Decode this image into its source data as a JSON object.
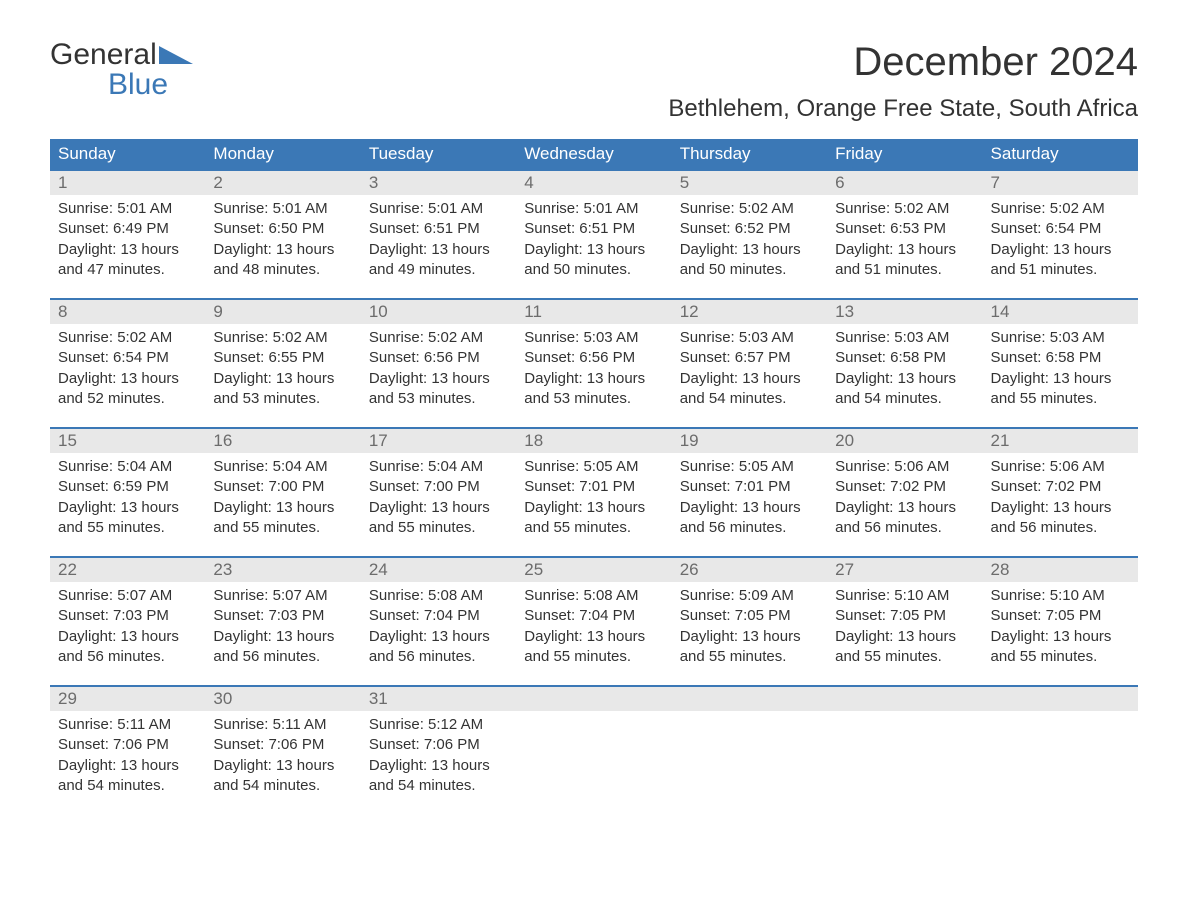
{
  "logo": {
    "line1": "General",
    "line2": "Blue"
  },
  "title": "December 2024",
  "location": "Bethlehem, Orange Free State, South Africa",
  "colors": {
    "accent": "#3b78b6",
    "header_bg": "#3b78b6",
    "header_text": "#ffffff",
    "daynum_bg": "#e8e8e8",
    "daynum_text": "#6c6c6c",
    "body_text": "#333333",
    "background": "#ffffff"
  },
  "daysOfWeek": [
    "Sunday",
    "Monday",
    "Tuesday",
    "Wednesday",
    "Thursday",
    "Friday",
    "Saturday"
  ],
  "labels": {
    "sunrise": "Sunrise:",
    "sunset": "Sunset:",
    "daylight": "Daylight:"
  },
  "weeks": [
    [
      {
        "n": "1",
        "sunrise": "5:01 AM",
        "sunset": "6:49 PM",
        "daylight": "13 hours and 47 minutes."
      },
      {
        "n": "2",
        "sunrise": "5:01 AM",
        "sunset": "6:50 PM",
        "daylight": "13 hours and 48 minutes."
      },
      {
        "n": "3",
        "sunrise": "5:01 AM",
        "sunset": "6:51 PM",
        "daylight": "13 hours and 49 minutes."
      },
      {
        "n": "4",
        "sunrise": "5:01 AM",
        "sunset": "6:51 PM",
        "daylight": "13 hours and 50 minutes."
      },
      {
        "n": "5",
        "sunrise": "5:02 AM",
        "sunset": "6:52 PM",
        "daylight": "13 hours and 50 minutes."
      },
      {
        "n": "6",
        "sunrise": "5:02 AM",
        "sunset": "6:53 PM",
        "daylight": "13 hours and 51 minutes."
      },
      {
        "n": "7",
        "sunrise": "5:02 AM",
        "sunset": "6:54 PM",
        "daylight": "13 hours and 51 minutes."
      }
    ],
    [
      {
        "n": "8",
        "sunrise": "5:02 AM",
        "sunset": "6:54 PM",
        "daylight": "13 hours and 52 minutes."
      },
      {
        "n": "9",
        "sunrise": "5:02 AM",
        "sunset": "6:55 PM",
        "daylight": "13 hours and 53 minutes."
      },
      {
        "n": "10",
        "sunrise": "5:02 AM",
        "sunset": "6:56 PM",
        "daylight": "13 hours and 53 minutes."
      },
      {
        "n": "11",
        "sunrise": "5:03 AM",
        "sunset": "6:56 PM",
        "daylight": "13 hours and 53 minutes."
      },
      {
        "n": "12",
        "sunrise": "5:03 AM",
        "sunset": "6:57 PM",
        "daylight": "13 hours and 54 minutes."
      },
      {
        "n": "13",
        "sunrise": "5:03 AM",
        "sunset": "6:58 PM",
        "daylight": "13 hours and 54 minutes."
      },
      {
        "n": "14",
        "sunrise": "5:03 AM",
        "sunset": "6:58 PM",
        "daylight": "13 hours and 55 minutes."
      }
    ],
    [
      {
        "n": "15",
        "sunrise": "5:04 AM",
        "sunset": "6:59 PM",
        "daylight": "13 hours and 55 minutes."
      },
      {
        "n": "16",
        "sunrise": "5:04 AM",
        "sunset": "7:00 PM",
        "daylight": "13 hours and 55 minutes."
      },
      {
        "n": "17",
        "sunrise": "5:04 AM",
        "sunset": "7:00 PM",
        "daylight": "13 hours and 55 minutes."
      },
      {
        "n": "18",
        "sunrise": "5:05 AM",
        "sunset": "7:01 PM",
        "daylight": "13 hours and 55 minutes."
      },
      {
        "n": "19",
        "sunrise": "5:05 AM",
        "sunset": "7:01 PM",
        "daylight": "13 hours and 56 minutes."
      },
      {
        "n": "20",
        "sunrise": "5:06 AM",
        "sunset": "7:02 PM",
        "daylight": "13 hours and 56 minutes."
      },
      {
        "n": "21",
        "sunrise": "5:06 AM",
        "sunset": "7:02 PM",
        "daylight": "13 hours and 56 minutes."
      }
    ],
    [
      {
        "n": "22",
        "sunrise": "5:07 AM",
        "sunset": "7:03 PM",
        "daylight": "13 hours and 56 minutes."
      },
      {
        "n": "23",
        "sunrise": "5:07 AM",
        "sunset": "7:03 PM",
        "daylight": "13 hours and 56 minutes."
      },
      {
        "n": "24",
        "sunrise": "5:08 AM",
        "sunset": "7:04 PM",
        "daylight": "13 hours and 56 minutes."
      },
      {
        "n": "25",
        "sunrise": "5:08 AM",
        "sunset": "7:04 PM",
        "daylight": "13 hours and 55 minutes."
      },
      {
        "n": "26",
        "sunrise": "5:09 AM",
        "sunset": "7:05 PM",
        "daylight": "13 hours and 55 minutes."
      },
      {
        "n": "27",
        "sunrise": "5:10 AM",
        "sunset": "7:05 PM",
        "daylight": "13 hours and 55 minutes."
      },
      {
        "n": "28",
        "sunrise": "5:10 AM",
        "sunset": "7:05 PM",
        "daylight": "13 hours and 55 minutes."
      }
    ],
    [
      {
        "n": "29",
        "sunrise": "5:11 AM",
        "sunset": "7:06 PM",
        "daylight": "13 hours and 54 minutes."
      },
      {
        "n": "30",
        "sunrise": "5:11 AM",
        "sunset": "7:06 PM",
        "daylight": "13 hours and 54 minutes."
      },
      {
        "n": "31",
        "sunrise": "5:12 AM",
        "sunset": "7:06 PM",
        "daylight": "13 hours and 54 minutes."
      },
      null,
      null,
      null,
      null
    ]
  ]
}
